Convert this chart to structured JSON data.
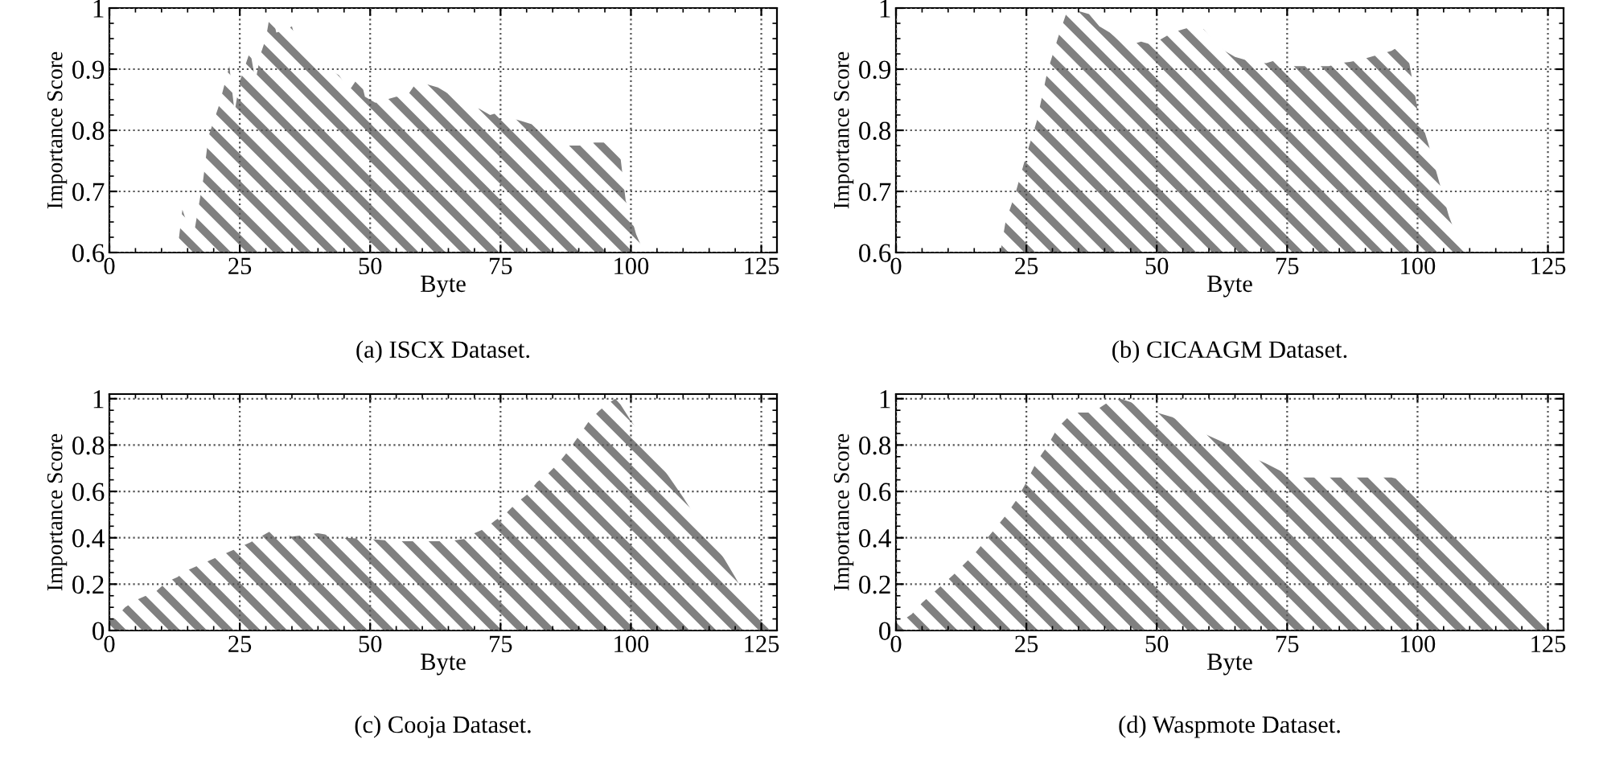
{
  "chart_data": [
    {
      "type": "area",
      "title": "(a) ISCX Dataset.",
      "xlabel": "Byte",
      "ylabel": "Importance Score",
      "xlim": [
        0,
        128
      ],
      "xticks": [
        0,
        25,
        50,
        75,
        100,
        125
      ],
      "ylim": [
        0.6,
        1
      ],
      "yticks": [
        0.6,
        0.7,
        0.8,
        0.9,
        1
      ],
      "grid": true,
      "legend": false,
      "x": [
        13,
        14,
        16,
        18,
        19,
        21,
        23,
        24,
        25,
        27,
        28,
        29,
        30,
        31,
        32,
        34,
        35,
        36,
        37,
        39,
        40,
        42,
        44,
        46,
        48,
        49,
        51,
        53,
        55,
        57,
        59,
        61,
        63,
        65,
        67,
        69,
        71,
        73,
        75,
        77,
        79,
        81,
        83,
        85,
        87,
        89,
        91,
        93,
        95,
        97,
        98,
        99,
        100,
        101,
        102,
        103
      ],
      "series": [
        {
          "color": "#808080",
          "values": [
            0.6,
            0.67,
            0.62,
            0.72,
            0.79,
            0.84,
            0.905,
            0.83,
            0.88,
            0.93,
            0.88,
            0.925,
            0.95,
            1.0,
            0.96,
            0.965,
            0.97,
            0.94,
            0.93,
            0.93,
            0.905,
            0.9,
            0.89,
            0.865,
            0.89,
            0.855,
            0.845,
            0.85,
            0.855,
            0.855,
            0.88,
            0.875,
            0.87,
            0.86,
            0.855,
            0.84,
            0.835,
            0.825,
            0.83,
            0.82,
            0.815,
            0.81,
            0.795,
            0.79,
            0.775,
            0.775,
            0.775,
            0.78,
            0.78,
            0.775,
            0.755,
            0.685,
            0.66,
            0.63,
            0.61,
            0.6
          ]
        }
      ]
    },
    {
      "type": "area",
      "title": "(b) CICAAGM Dataset.",
      "xlabel": "Byte",
      "ylabel": "Importance Score",
      "xlim": [
        0,
        128
      ],
      "xticks": [
        0,
        25,
        50,
        75,
        100,
        125
      ],
      "ylim": [
        0.6,
        1
      ],
      "yticks": [
        0.6,
        0.7,
        0.8,
        0.9,
        1
      ],
      "grid": true,
      "legend": false,
      "x": [
        20,
        21,
        23,
        25,
        27,
        29,
        31,
        33,
        35,
        37,
        39,
        41,
        43,
        45,
        47,
        49,
        51,
        53,
        55,
        57,
        59,
        61,
        63,
        65,
        67,
        69,
        71,
        73,
        75,
        77,
        79,
        81,
        83,
        85,
        87,
        89,
        91,
        93,
        95,
        97,
        98,
        100,
        102,
        104,
        106,
        108,
        109
      ],
      "series": [
        {
          "color": "#808080",
          "values": [
            0.6,
            0.65,
            0.7,
            0.76,
            0.815,
            0.895,
            0.95,
            1.0,
            0.995,
            0.99,
            0.97,
            0.96,
            0.945,
            0.94,
            0.945,
            0.94,
            0.95,
            0.96,
            0.965,
            0.97,
            0.965,
            0.945,
            0.93,
            0.92,
            0.915,
            0.91,
            0.91,
            0.915,
            0.905,
            0.905,
            0.905,
            0.905,
            0.905,
            0.91,
            0.912,
            0.915,
            0.92,
            0.925,
            0.93,
            0.94,
            0.93,
            0.835,
            0.78,
            0.72,
            0.66,
            0.615,
            0.6
          ]
        }
      ]
    },
    {
      "type": "area",
      "title": "(c) Cooja Dataset.",
      "xlabel": "Byte",
      "ylabel": "Importance Score",
      "xlim": [
        0,
        128
      ],
      "xticks": [
        0,
        25,
        50,
        75,
        100,
        125
      ],
      "ylim": [
        0,
        1.02
      ],
      "yticks": [
        0,
        0.2,
        0.4,
        0.6,
        0.8,
        1
      ],
      "grid": true,
      "legend": false,
      "x": [
        0,
        1,
        3,
        5,
        7,
        9,
        11,
        13,
        15,
        17,
        19,
        21,
        23,
        25,
        27,
        29,
        31,
        33,
        35,
        40,
        45,
        50,
        55,
        60,
        65,
        68,
        70,
        72,
        74,
        76,
        78,
        80,
        82,
        84,
        86,
        88,
        90,
        92,
        94,
        96,
        97,
        98,
        100,
        102,
        104,
        106,
        108,
        110,
        112,
        114,
        116,
        118,
        120,
        122,
        124,
        126,
        127
      ],
      "series": [
        {
          "color": "#808080",
          "values": [
            0.05,
            0.05,
            0.1,
            0.13,
            0.15,
            0.17,
            0.21,
            0.23,
            0.26,
            0.28,
            0.3,
            0.32,
            0.34,
            0.36,
            0.38,
            0.405,
            0.43,
            0.42,
            0.405,
            0.42,
            0.4,
            0.395,
            0.385,
            0.385,
            0.385,
            0.395,
            0.42,
            0.44,
            0.475,
            0.505,
            0.55,
            0.585,
            0.64,
            0.675,
            0.72,
            0.775,
            0.84,
            0.905,
            0.95,
            0.985,
            1.0,
            0.975,
            0.905,
            0.84,
            0.775,
            0.705,
            0.64,
            0.575,
            0.505,
            0.44,
            0.375,
            0.305,
            0.23,
            0.15,
            0.095,
            0.04,
            0.01
          ]
        }
      ]
    },
    {
      "type": "area",
      "title": "(d) Waspmote Dataset.",
      "xlabel": "Byte",
      "ylabel": "Importance Score",
      "xlim": [
        0,
        128
      ],
      "xticks": [
        0,
        25,
        50,
        75,
        100,
        125
      ],
      "ylim": [
        0,
        1.02
      ],
      "yticks": [
        0,
        0.2,
        0.4,
        0.6,
        0.8,
        1
      ],
      "grid": true,
      "legend": false,
      "x": [
        0,
        1,
        3,
        5,
        7,
        9,
        11,
        13,
        15,
        17,
        19,
        21,
        23,
        25,
        27,
        29,
        31,
        33,
        35,
        37,
        39,
        41,
        43,
        45,
        47,
        50,
        53,
        56,
        59,
        62,
        65,
        68,
        71,
        74,
        76,
        80,
        85,
        90,
        95,
        97,
        99,
        101,
        103,
        105,
        107,
        109,
        111,
        113,
        115,
        117,
        119,
        121,
        123,
        125,
        126
      ],
      "series": [
        {
          "color": "#808080",
          "values": [
            0.04,
            0.04,
            0.07,
            0.12,
            0.16,
            0.2,
            0.24,
            0.285,
            0.33,
            0.385,
            0.44,
            0.495,
            0.56,
            0.64,
            0.73,
            0.795,
            0.875,
            0.92,
            0.94,
            0.94,
            0.96,
            0.99,
            1.0,
            0.985,
            0.96,
            0.94,
            0.92,
            0.885,
            0.85,
            0.82,
            0.785,
            0.75,
            0.72,
            0.685,
            0.66,
            0.66,
            0.66,
            0.66,
            0.66,
            0.65,
            0.6,
            0.55,
            0.51,
            0.47,
            0.42,
            0.38,
            0.34,
            0.3,
            0.27,
            0.24,
            0.19,
            0.14,
            0.1,
            0.05,
            0.02
          ]
        }
      ]
    }
  ]
}
